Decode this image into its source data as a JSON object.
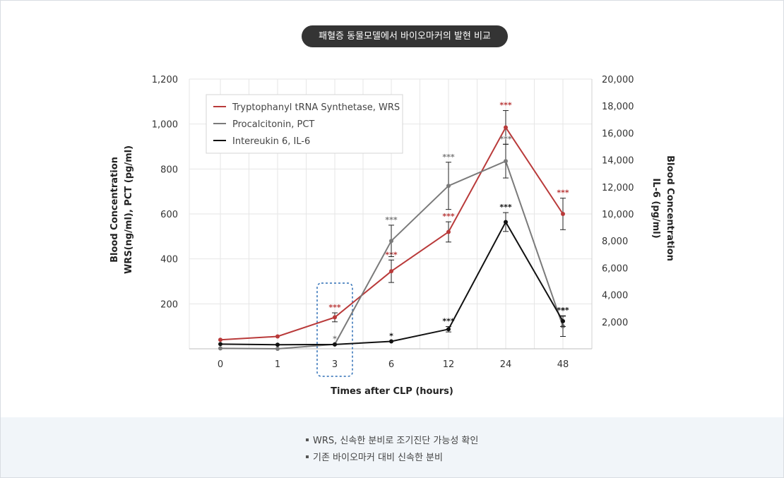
{
  "header": {
    "title": "패혈증 동물모델에서 바이오마커의 발현 비교"
  },
  "chart_data": {
    "type": "line",
    "categories": [
      "0",
      "1",
      "3",
      "6",
      "12",
      "24",
      "48"
    ],
    "xlabel": "Times after CLP (hours)",
    "ylabel_left": [
      "Blood Concentration",
      "WRS(ng/ml),  PCT (pg/ml)"
    ],
    "ylabel_right": [
      "Blood Concentration",
      "IL-6 (pg/ml)"
    ],
    "yleft_ticks": [
      "200",
      "400",
      "600",
      "800",
      "1,000",
      "1,200"
    ],
    "yright_ticks": [
      "2,000",
      "4,000",
      "6,000",
      "8,000",
      "10,000",
      "12,000",
      "14,000",
      "16,000",
      "18,000",
      "20,000"
    ],
    "ylim_left": [
      0,
      1200
    ],
    "ylim_right": [
      0,
      20000
    ],
    "grid": true,
    "legend_position": "top-left",
    "highlight_category": "3",
    "series": [
      {
        "name": "Tryptophanyl tRNA Synthetase, WRS",
        "axis": "left",
        "color": "#b93a3a",
        "values": [
          40,
          55,
          140,
          345,
          520,
          985,
          600
        ],
        "error": [
          null,
          null,
          20,
          50,
          45,
          75,
          70
        ],
        "sig": [
          "",
          "",
          "***",
          "***",
          "***",
          "***",
          "***"
        ]
      },
      {
        "name": "Procalcitonin, PCT",
        "axis": "left",
        "color": "#7a7a7a",
        "values": [
          2,
          0,
          20,
          480,
          725,
          835,
          100
        ],
        "error": [
          null,
          null,
          null,
          70,
          105,
          75,
          45
        ],
        "sig": [
          "",
          "",
          "*",
          "***",
          "***",
          "***",
          "*"
        ]
      },
      {
        "name": "Intereukin 6, IL-6",
        "axis": "right",
        "color": "#111111",
        "values": [
          350,
          300,
          320,
          550,
          1450,
          9400,
          2050
        ],
        "error": [
          null,
          null,
          null,
          null,
          200,
          700,
          400
        ],
        "sig": [
          "",
          "",
          "",
          "*",
          "***",
          "***",
          "***"
        ]
      }
    ]
  },
  "notes": [
    "WRS, 신속한 분비로 조기진단 가능성 확인",
    "기존 바이오마커 대비 신속한 분비"
  ]
}
